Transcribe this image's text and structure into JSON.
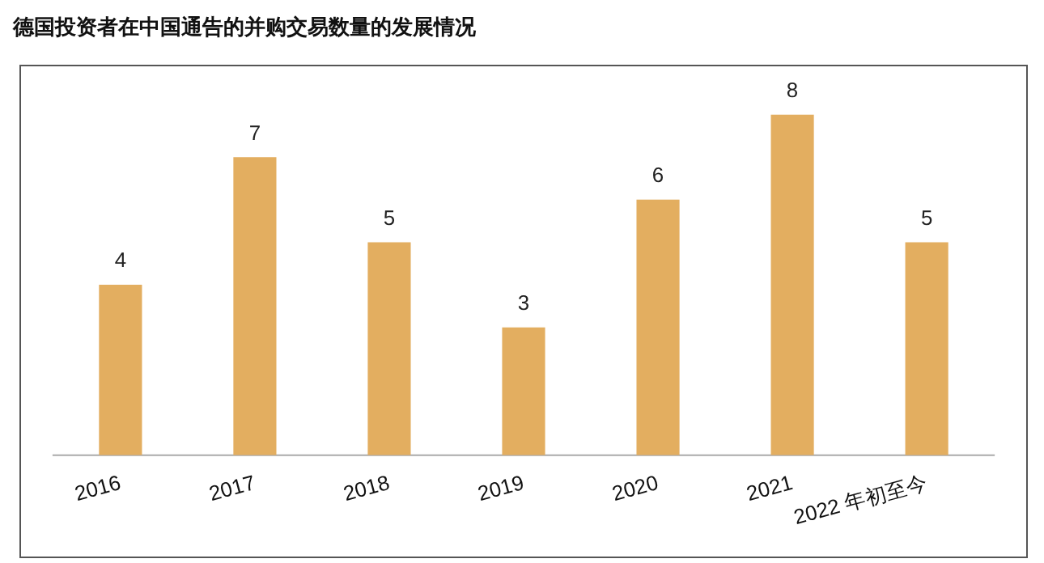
{
  "chart_data": {
    "type": "bar",
    "title": "德国投资者在中国通告的并购交易数量的发展情况",
    "categories": [
      "2016",
      "2017",
      "2018",
      "2019",
      "2020",
      "2021",
      "2022 年初至今"
    ],
    "values": [
      4,
      7,
      5,
      3,
      6,
      8,
      5
    ],
    "color": "#e3ae60",
    "data_labels": true,
    "grid": false,
    "legend": false
  }
}
